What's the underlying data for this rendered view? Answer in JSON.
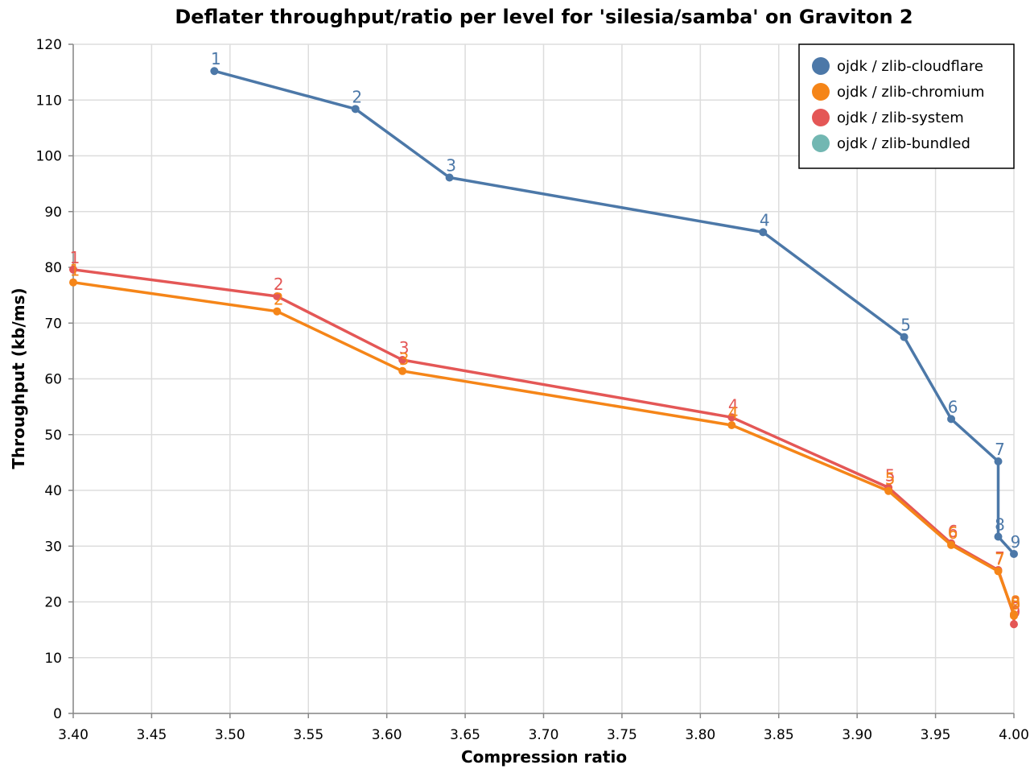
{
  "chart_data": {
    "type": "line",
    "title": "Deflater throughput/ratio per level for 'silesia/samba' on Graviton 2",
    "xlabel": "Compression ratio",
    "ylabel": "Throughput (kb/ms)",
    "xlim": [
      3.4,
      4.0
    ],
    "ylim": [
      0,
      120
    ],
    "xticks": [
      "3.40",
      "3.45",
      "3.50",
      "3.55",
      "3.60",
      "3.65",
      "3.70",
      "3.75",
      "3.80",
      "3.85",
      "3.90",
      "3.95",
      "4.00"
    ],
    "yticks": [
      "0",
      "10",
      "20",
      "30",
      "40",
      "50",
      "60",
      "70",
      "80",
      "90",
      "100",
      "110",
      "120"
    ],
    "grid": true,
    "legend_position": "top-right",
    "series": [
      {
        "name": "ojdk / zlib-cloudflare",
        "color": "#4c78a8",
        "points": [
          {
            "x": 3.49,
            "y": 115.2,
            "label": "1"
          },
          {
            "x": 3.58,
            "y": 108.4,
            "label": "2"
          },
          {
            "x": 3.64,
            "y": 96.1,
            "label": "3"
          },
          {
            "x": 3.84,
            "y": 86.3,
            "label": "4"
          },
          {
            "x": 3.93,
            "y": 67.5,
            "label": "5"
          },
          {
            "x": 3.96,
            "y": 52.8,
            "label": "6"
          },
          {
            "x": 3.99,
            "y": 45.2,
            "label": "7"
          },
          {
            "x": 3.99,
            "y": 31.7,
            "label": "8"
          },
          {
            "x": 4.0,
            "y": 28.6,
            "label": "9"
          }
        ]
      },
      {
        "name": "ojdk / zlib-chromium",
        "color": "#f58518",
        "points": [
          {
            "x": 3.4,
            "y": 77.3,
            "label": "1"
          },
          {
            "x": 3.53,
            "y": 72.1,
            "label": "2"
          },
          {
            "x": 3.61,
            "y": 61.4,
            "label": "3"
          },
          {
            "x": 3.82,
            "y": 51.7,
            "label": "4"
          },
          {
            "x": 3.92,
            "y": 39.9,
            "label": "5"
          },
          {
            "x": 3.96,
            "y": 30.2,
            "label": "6"
          },
          {
            "x": 3.99,
            "y": 25.5,
            "label": "7"
          },
          {
            "x": 4.0,
            "y": 17.8,
            "label": "8"
          },
          {
            "x": 4.0,
            "y": 17.5,
            "label": "9"
          }
        ]
      },
      {
        "name": "ojdk / zlib-system",
        "color": "#e45756",
        "points": [
          {
            "x": 3.4,
            "y": 79.6,
            "label": "1"
          },
          {
            "x": 3.53,
            "y": 74.8,
            "label": "2"
          },
          {
            "x": 3.61,
            "y": 63.4,
            "label": "3"
          },
          {
            "x": 3.82,
            "y": 53.1,
            "label": "4"
          },
          {
            "x": 3.92,
            "y": 40.5,
            "label": "5"
          },
          {
            "x": 3.96,
            "y": 30.5,
            "label": "6"
          },
          {
            "x": 3.99,
            "y": 25.7,
            "label": "7"
          },
          {
            "x": 4.0,
            "y": 17.6,
            "label": "8"
          },
          {
            "x": 4.0,
            "y": 16.0,
            "label": "9"
          }
        ]
      },
      {
        "name": "ojdk / zlib-bundled",
        "color": "#72b7b2",
        "points": []
      }
    ]
  }
}
